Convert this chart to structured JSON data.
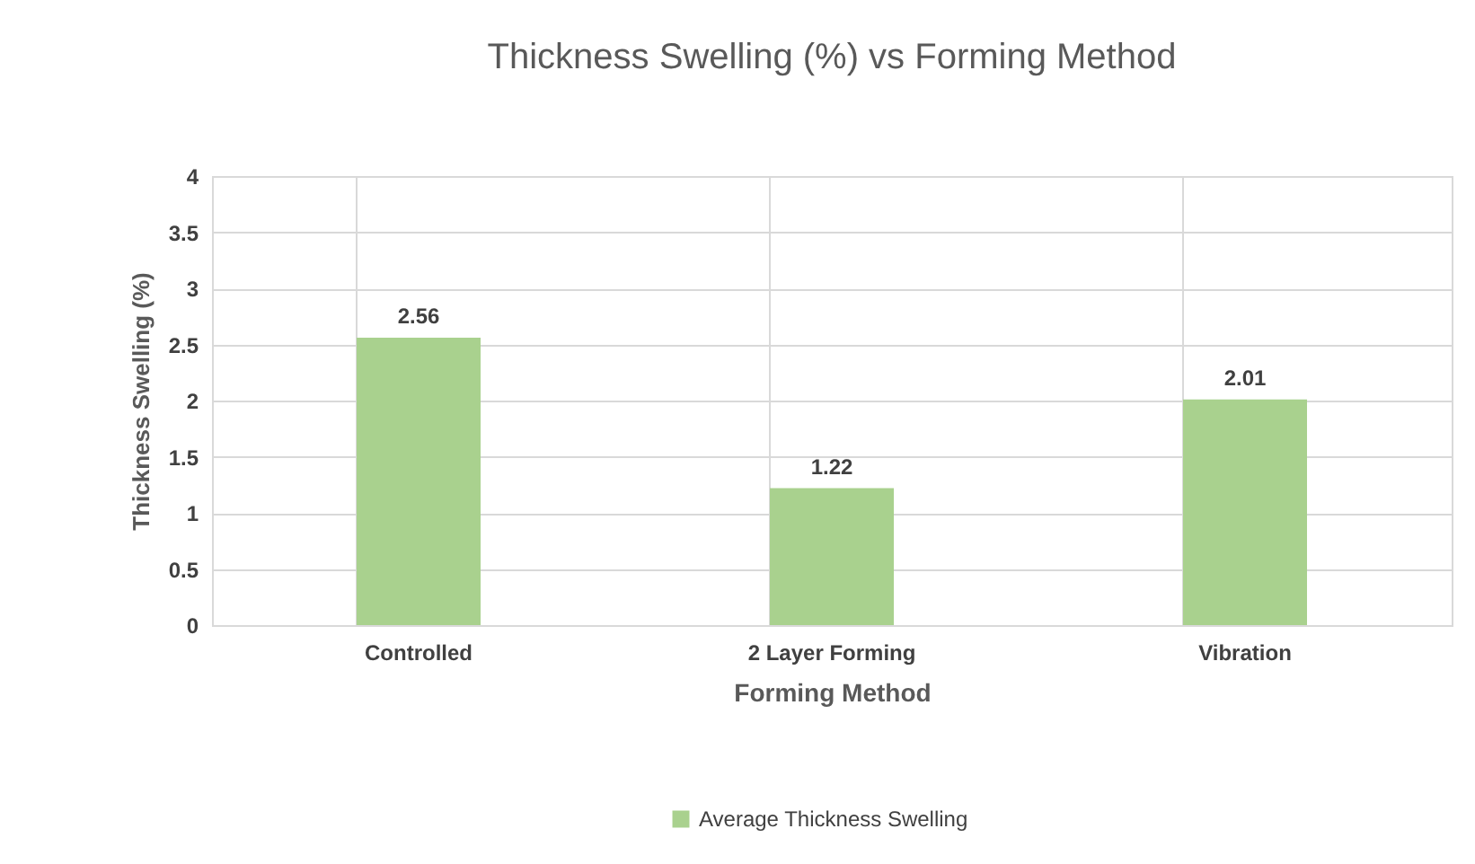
{
  "chart_data": {
    "type": "bar",
    "title": "Thickness Swelling (%) vs Forming Method",
    "xlabel": "Forming Method",
    "ylabel": "Thickness Swelling (%)",
    "categories": [
      "Controlled",
      "2 Layer Forming",
      "Vibration"
    ],
    "series": [
      {
        "name": "Average Thickness Swelling",
        "color": "#a9d18e",
        "values": [
          2.56,
          1.22,
          2.01
        ]
      }
    ],
    "ylim": [
      0,
      4
    ],
    "yticks": [
      0,
      0.5,
      1,
      1.5,
      2,
      2.5,
      3,
      3.5,
      4
    ],
    "grid": true,
    "legend": "bottom",
    "data_labels": true
  }
}
